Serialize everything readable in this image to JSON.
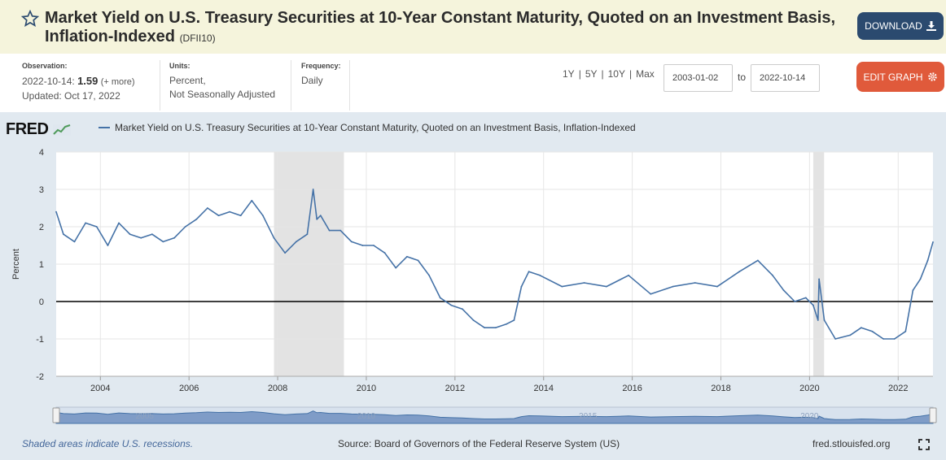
{
  "header": {
    "title": "Market Yield on U.S. Treasury Securities at 10-Year Constant Maturity, Quoted on an Investment Basis, Inflation-Indexed",
    "series_id": "(DFII10)",
    "download_label": "DOWNLOAD"
  },
  "meta": {
    "observation_label": "Observation:",
    "observation_date": "2022-10-14:",
    "observation_value": "1.59",
    "observation_more": "(+ more)",
    "updated": "Updated: Oct 17, 2022",
    "units_label": "Units:",
    "units_line1": "Percent,",
    "units_line2": "Not Seasonally Adjusted",
    "frequency_label": "Frequency:",
    "frequency_value": "Daily"
  },
  "range_controls": {
    "buttons": [
      "1Y",
      "5Y",
      "10Y",
      "Max"
    ],
    "separator": "|",
    "start_date": "2003-01-02",
    "to_label": "to",
    "end_date": "2022-10-14",
    "edit_label": "EDIT GRAPH"
  },
  "colors": {
    "series": "#4572a7",
    "recession": "#e3e3e3",
    "download_button": "#2b4a6f",
    "edit_button": "#e05a3b",
    "header_bg": "#f5f4dc",
    "graph_bg": "#e1e9f0"
  },
  "icons": {
    "star": "star-icon",
    "download": "download-icon",
    "edit": "gear-icon",
    "fullscreen": "fullscreen-icon"
  },
  "chart_data": {
    "type": "line",
    "logo": "FRED",
    "legend": "Market Yield on U.S. Treasury Securities at 10-Year Constant Maturity, Quoted on an Investment Basis, Inflation-Indexed",
    "ylabel": "Percent",
    "ylim": [
      -2,
      4
    ],
    "y_ticks": [
      "4",
      "3",
      "2",
      "1",
      "0",
      "-1",
      "-2"
    ],
    "x_ticks": [
      "2004",
      "2006",
      "2008",
      "2010",
      "2012",
      "2014",
      "2016",
      "2018",
      "2020",
      "2022"
    ],
    "xlim": [
      "2003-01-02",
      "2022-10-14"
    ],
    "grid": true,
    "zero_line": true,
    "recessions": [
      [
        "2007-12-01",
        "2009-06-30"
      ],
      [
        "2020-02-01",
        "2020-04-30"
      ]
    ],
    "navigator_labels": [
      "2005",
      "2010",
      "2015",
      "2020"
    ],
    "series": [
      {
        "name": "DFII10",
        "x": [
          "2003-01-02",
          "2003-03",
          "2003-06",
          "2003-09",
          "2003-12",
          "2004-03",
          "2004-06",
          "2004-09",
          "2004-12",
          "2005-03",
          "2005-06",
          "2005-09",
          "2005-12",
          "2006-03",
          "2006-06",
          "2006-09",
          "2006-12",
          "2007-03",
          "2007-06",
          "2007-09",
          "2007-12",
          "2008-03",
          "2008-06",
          "2008-09",
          "2008-10-20",
          "2008-11-20",
          "2008-12-20",
          "2009-03",
          "2009-06",
          "2009-09",
          "2009-12",
          "2010-03",
          "2010-06",
          "2010-09",
          "2010-12",
          "2011-03",
          "2011-06",
          "2011-09",
          "2011-12",
          "2012-03",
          "2012-06",
          "2012-09",
          "2012-12",
          "2013-03",
          "2013-05",
          "2013-07",
          "2013-09",
          "2013-12",
          "2014-06",
          "2014-12",
          "2015-06",
          "2015-12",
          "2016-06",
          "2016-12",
          "2017-06",
          "2017-12",
          "2018-06",
          "2018-11",
          "2019-03",
          "2019-06",
          "2019-09",
          "2019-12",
          "2020-02",
          "2020-03-10",
          "2020-03-19",
          "2020-05",
          "2020-08",
          "2020-12",
          "2021-03",
          "2021-06",
          "2021-09",
          "2021-12",
          "2022-03",
          "2022-05",
          "2022-07",
          "2022-09",
          "2022-10-14"
        ],
        "values": [
          2.4,
          1.8,
          1.6,
          2.1,
          2.0,
          1.5,
          2.1,
          1.8,
          1.7,
          1.8,
          1.6,
          1.7,
          2.0,
          2.2,
          2.5,
          2.3,
          2.4,
          2.3,
          2.7,
          2.3,
          1.7,
          1.3,
          1.6,
          1.8,
          3.0,
          2.2,
          2.3,
          1.9,
          1.9,
          1.6,
          1.5,
          1.5,
          1.3,
          0.9,
          1.2,
          1.1,
          0.7,
          0.1,
          -0.1,
          -0.2,
          -0.5,
          -0.7,
          -0.7,
          -0.6,
          -0.5,
          0.4,
          0.8,
          0.7,
          0.4,
          0.5,
          0.4,
          0.7,
          0.2,
          0.4,
          0.5,
          0.4,
          0.8,
          1.1,
          0.7,
          0.3,
          0.0,
          0.1,
          -0.1,
          -0.5,
          0.6,
          -0.5,
          -1.0,
          -0.9,
          -0.7,
          -0.8,
          -1.0,
          -1.0,
          -0.8,
          0.3,
          0.6,
          1.1,
          1.59
        ]
      }
    ]
  },
  "footer": {
    "recession_note": "Shaded areas indicate U.S. recessions.",
    "source": "Source: Board of Governors of the Federal Reserve System (US)",
    "site": "fred.stlouisfed.org"
  }
}
